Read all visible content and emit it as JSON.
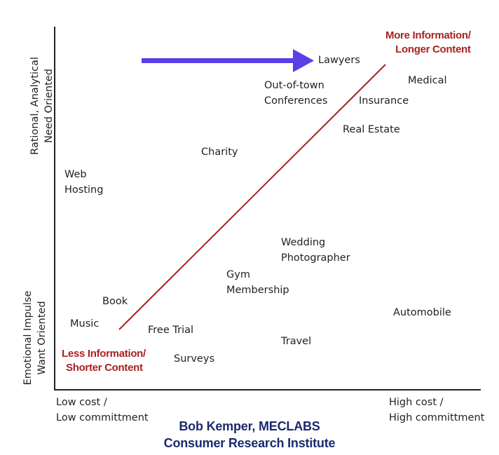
{
  "y_axis": {
    "top_label": [
      "Rational, Analytical",
      "Need Oriented"
    ],
    "bottom_label": [
      "Emotional Impulse",
      "Want Oriented"
    ]
  },
  "x_axis": {
    "left_label": [
      "Low cost /",
      "Low committment"
    ],
    "right_label": [
      "High cost /",
      "High committment"
    ]
  },
  "trend": {
    "start_label": [
      "Less Information/",
      "Shorter Content"
    ],
    "end_label": [
      "More Information/",
      "Longer Content"
    ],
    "color": "#a8221f"
  },
  "arrow": {
    "color": "#5b3fe6"
  },
  "items": [
    {
      "id": "lawyers",
      "lines": [
        "Lawyers"
      ]
    },
    {
      "id": "medical",
      "lines": [
        "Medical"
      ]
    },
    {
      "id": "out-of-town-conferences",
      "lines": [
        "Out-of-town",
        "Conferences"
      ]
    },
    {
      "id": "insurance",
      "lines": [
        "Insurance"
      ]
    },
    {
      "id": "real-estate",
      "lines": [
        "Real Estate"
      ]
    },
    {
      "id": "charity",
      "lines": [
        "Charity"
      ]
    },
    {
      "id": "web-hosting",
      "lines": [
        "Web",
        "Hosting"
      ]
    },
    {
      "id": "wedding-photographer",
      "lines": [
        "Wedding",
        "Photographer"
      ]
    },
    {
      "id": "gym-membership",
      "lines": [
        "Gym",
        "Membership"
      ]
    },
    {
      "id": "book",
      "lines": [
        "Book"
      ]
    },
    {
      "id": "automobile",
      "lines": [
        "Automobile"
      ]
    },
    {
      "id": "music",
      "lines": [
        "Music"
      ]
    },
    {
      "id": "free-trial",
      "lines": [
        "Free Trial"
      ]
    },
    {
      "id": "travel",
      "lines": [
        "Travel"
      ]
    },
    {
      "id": "surveys",
      "lines": [
        "Surveys"
      ]
    }
  ],
  "credit": [
    "Bob Kemper, MECLABS",
    "Consumer Research Institute"
  ]
}
